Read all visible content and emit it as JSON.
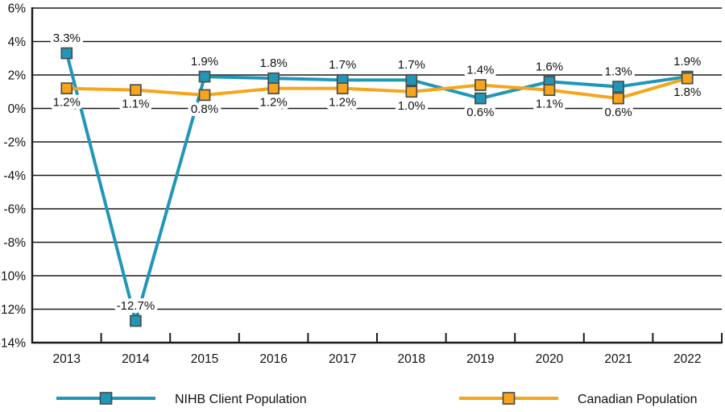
{
  "chart_data": {
    "type": "line",
    "title": "",
    "xlabel": "",
    "ylabel": "",
    "categories": [
      "2013",
      "2014",
      "2015",
      "2016",
      "2017",
      "2018",
      "2019",
      "2020",
      "2021",
      "2022"
    ],
    "series": [
      {
        "name": "NIHB Client Population",
        "color": "#2097B8",
        "marker": "square",
        "values": [
          3.3,
          -12.7,
          1.9,
          1.8,
          1.7,
          1.7,
          0.6,
          1.6,
          1.3,
          1.9
        ],
        "labels": [
          "3.3%",
          "-12.7%",
          "1.9%",
          "1.8%",
          "1.7%",
          "1.7%",
          "0.6%",
          "1.6%",
          "1.3%",
          "1.9%"
        ],
        "label_side": [
          "above",
          "above",
          "above",
          "above",
          "above",
          "above",
          "below",
          "above",
          "above",
          "above"
        ]
      },
      {
        "name": "Canadian Population",
        "color": "#F6A51C",
        "marker": "square",
        "values": [
          1.2,
          1.1,
          0.8,
          1.2,
          1.2,
          1.0,
          1.4,
          1.1,
          0.6,
          1.8
        ],
        "labels": [
          "1.2%",
          "1.1%",
          "0.8%",
          "1.2%",
          "1.2%",
          "1.0%",
          "1.4%",
          "1.1%",
          "0.6%",
          "1.8%"
        ],
        "label_side": [
          "below",
          "below",
          "below",
          "below",
          "below",
          "below",
          "above",
          "below",
          "below",
          "below"
        ]
      }
    ],
    "ylim": [
      -14,
      6
    ],
    "ytick_step": 2,
    "y_suffix": "%",
    "ytick_labels": [
      "6%",
      "4%",
      "2%",
      "0%",
      "-2%",
      "-4%",
      "-6%",
      "-8%",
      "-10%",
      "-12%",
      "-14%"
    ],
    "grid": true,
    "axis_color": "#1A1A1A",
    "marker_border_color": "#4D4D4D",
    "legend_position": "bottom"
  }
}
